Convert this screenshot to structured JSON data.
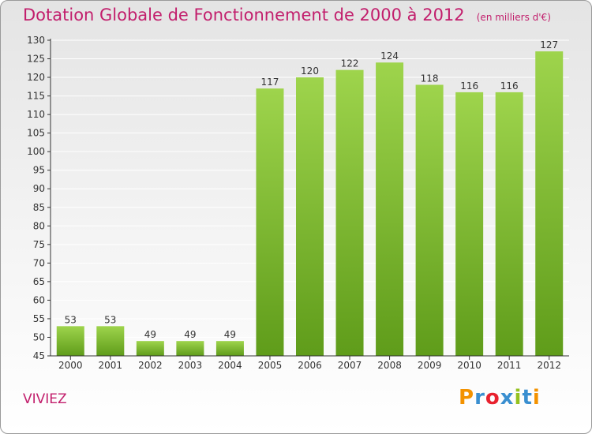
{
  "header": {
    "title": "Dotation Globale de Fonctionnement de 2000 à 2012",
    "unit": "(en milliers d'€)"
  },
  "commune": "VIVIEZ",
  "logo": {
    "text": "Proxiti",
    "letter_colors": [
      "#f39200",
      "#3a8fd0",
      "#e8212e",
      "#3a8fd0",
      "#94c11f",
      "#3a8fd0",
      "#f39200"
    ]
  },
  "colors": {
    "title": "#c21e6c",
    "bar_top": "#9ed44c",
    "bar_bottom": "#5f9c1a",
    "grid": "#ffffff",
    "axis": "#333333"
  },
  "chart_data": {
    "type": "bar",
    "title": "Dotation Globale de Fonctionnement de 2000 à 2012",
    "xlabel": "",
    "ylabel": "",
    "categories": [
      "2000",
      "2001",
      "2002",
      "2003",
      "2004",
      "2005",
      "2006",
      "2007",
      "2008",
      "2009",
      "2010",
      "2011",
      "2012"
    ],
    "values": [
      53,
      53,
      49,
      49,
      49,
      117,
      120,
      122,
      124,
      118,
      116,
      116,
      127
    ],
    "ylim": [
      45,
      130
    ],
    "ytick_step": 5,
    "grid": true,
    "data_labels": true
  }
}
